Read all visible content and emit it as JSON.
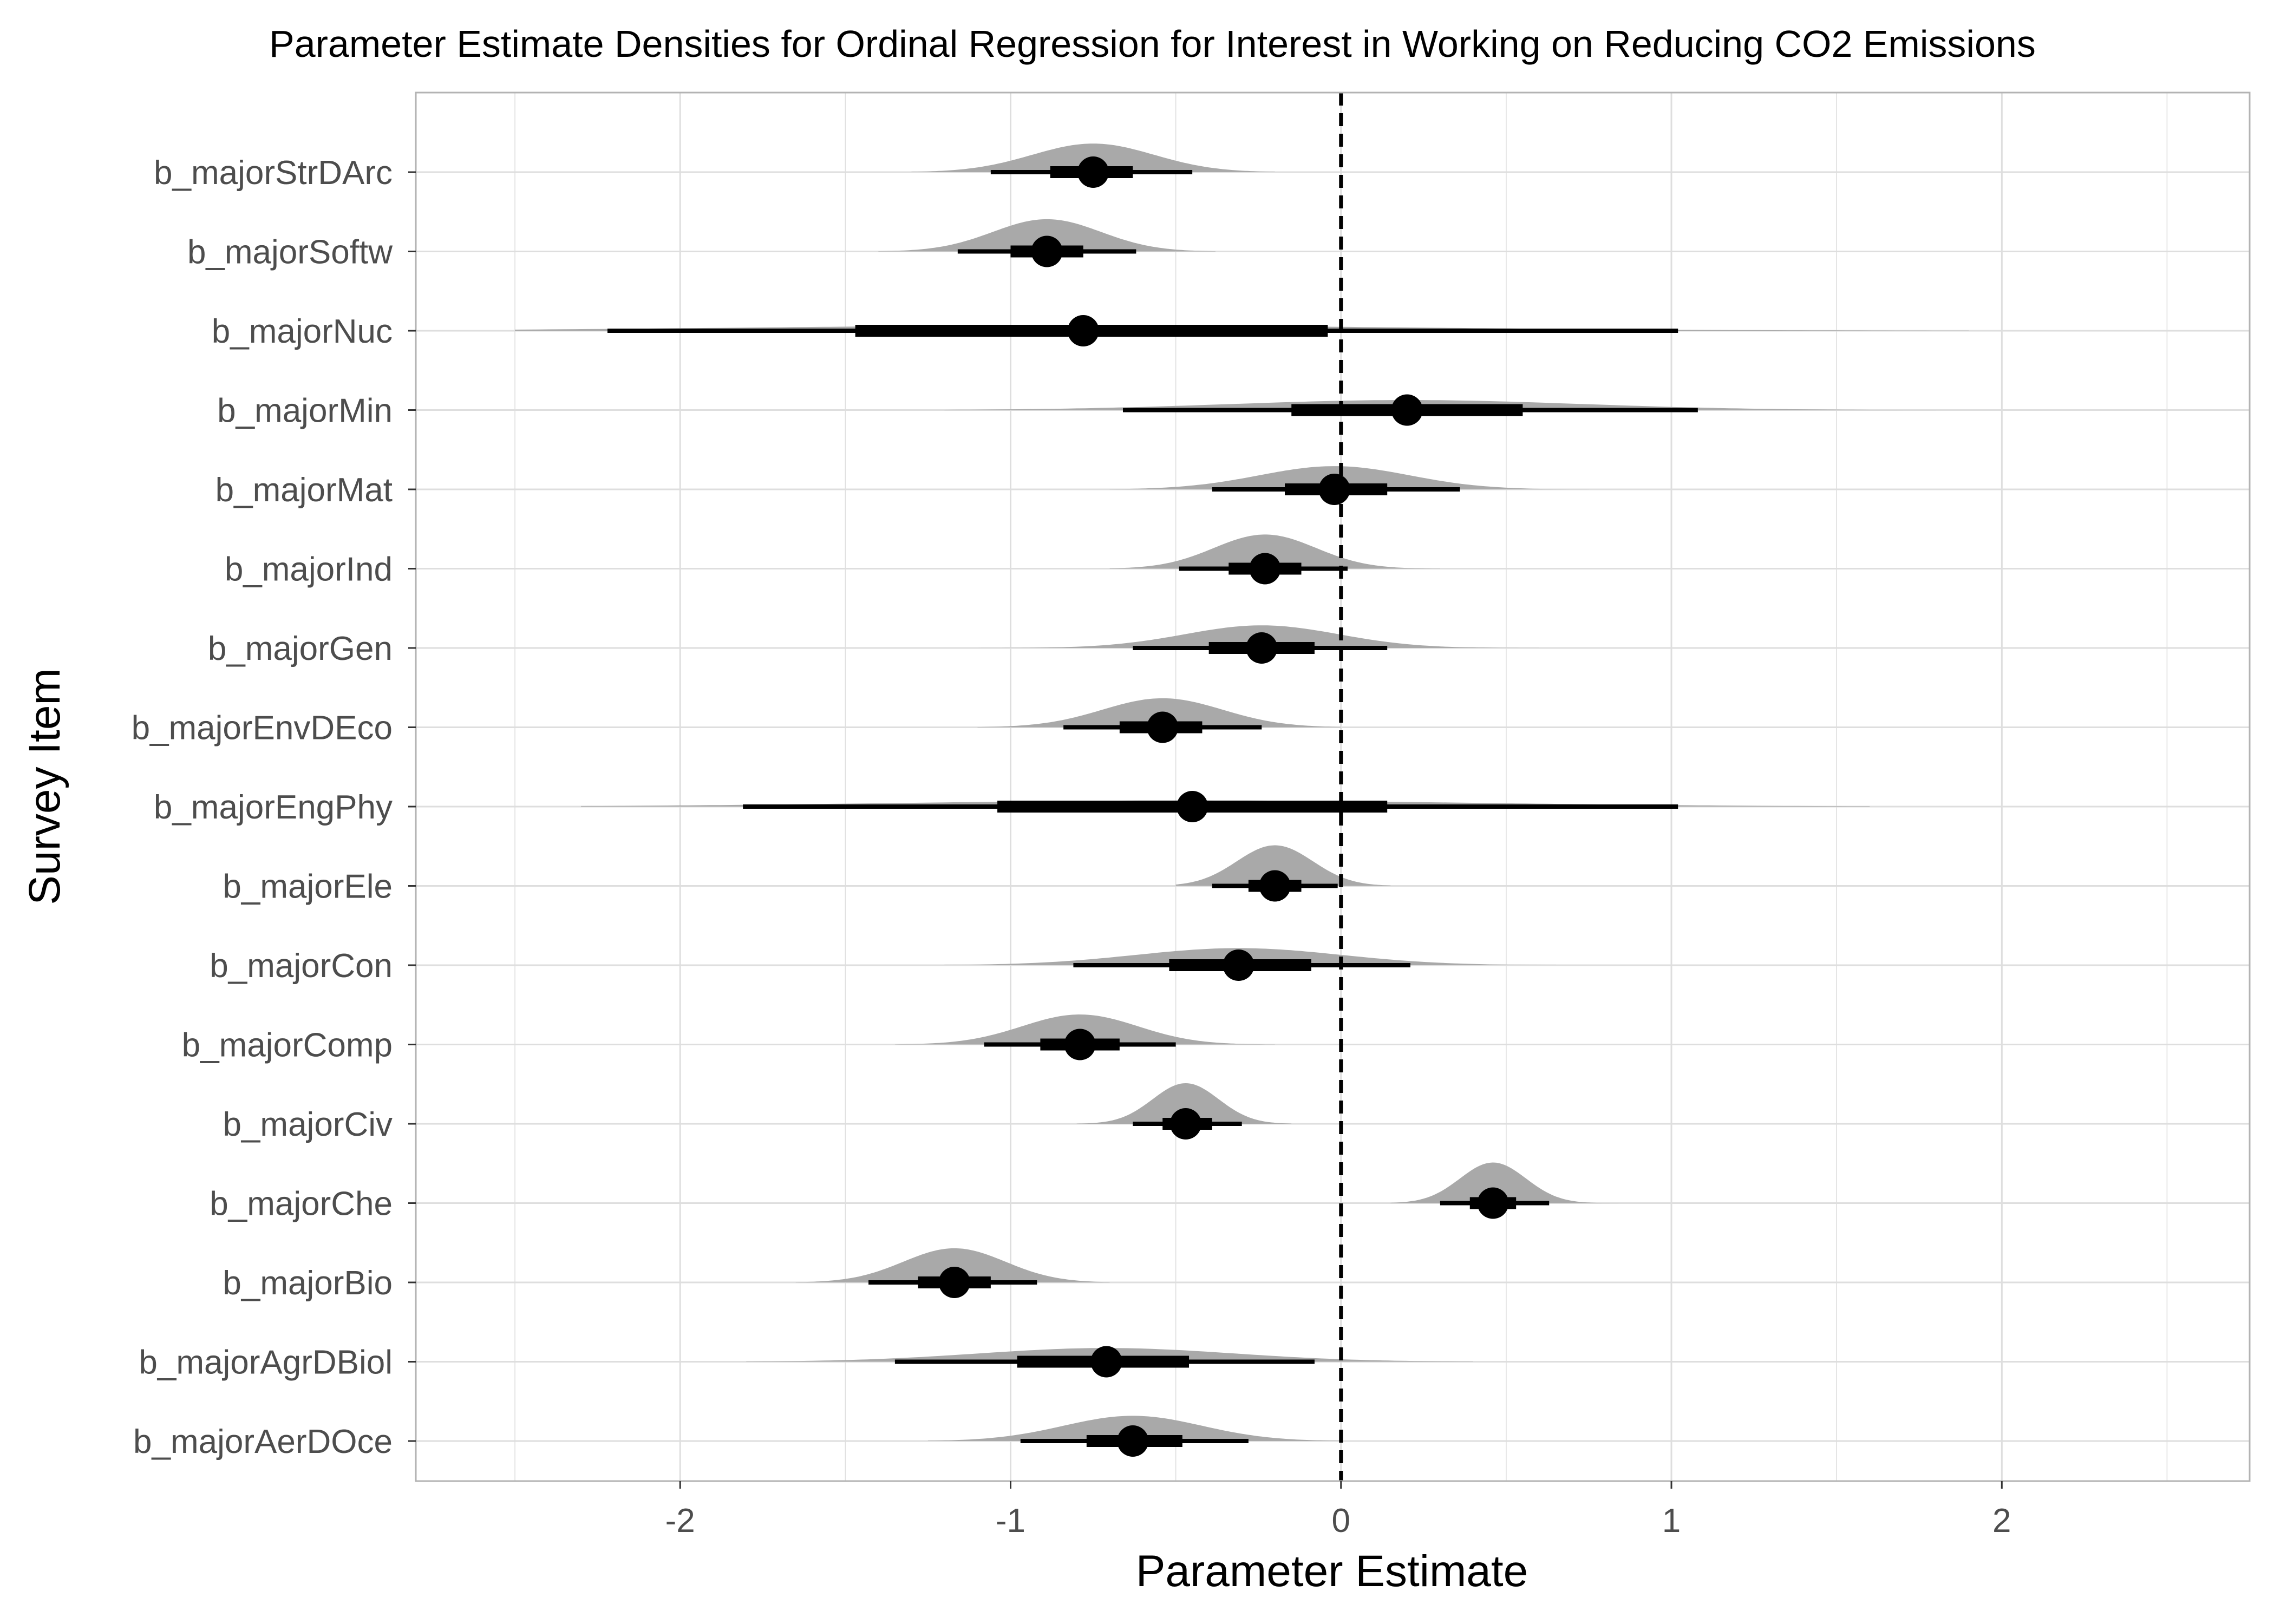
{
  "chart_data": {
    "type": "density-interval",
    "title": "Parameter Estimate Densities for Ordinal Regression for Interest in Working on Reducing CO2 Emissions",
    "xlabel": "Parameter Estimate",
    "ylabel": "Survey Item",
    "xlim": [
      -2.8,
      2.75
    ],
    "x_ticks": [
      "-2",
      "-1",
      "0",
      "1",
      "2"
    ],
    "x_tick_values": [
      -2,
      -1,
      0,
      1,
      2
    ],
    "reference_line": {
      "x": 0,
      "style": "dashed"
    },
    "grid": true,
    "colors": {
      "density": "#a9a9a9",
      "interval": "#000000",
      "grid": "#dedede",
      "panel_border": "#b3b3b3"
    },
    "categories": [
      "b_majorStrDArc",
      "b_majorSoftw",
      "b_majorNuc",
      "b_majorMin",
      "b_majorMat",
      "b_majorInd",
      "b_majorGen",
      "b_majorEnvDEco",
      "b_majorEngPhy",
      "b_majorEle",
      "b_majorCon",
      "b_majorComp",
      "b_majorCiv",
      "b_majorChe",
      "b_majorBio",
      "b_majorAgrDBiol",
      "b_majorAerDOce"
    ],
    "series": [
      {
        "label": "b_majorStrDArc",
        "median": -0.75,
        "inner": [
          -0.88,
          -0.63
        ],
        "outer": [
          -1.06,
          -0.45
        ],
        "range": [
          -1.3,
          -0.2
        ]
      },
      {
        "label": "b_majorSoftw",
        "median": -0.89,
        "inner": [
          -1.0,
          -0.78
        ],
        "outer": [
          -1.16,
          -0.62
        ],
        "range": [
          -1.4,
          -0.38
        ]
      },
      {
        "label": "b_majorNuc",
        "median": -0.78,
        "inner": [
          -1.47,
          -0.04
        ],
        "outer": [
          -2.22,
          1.02
        ],
        "range": [
          -2.5,
          1.9
        ]
      },
      {
        "label": "b_majorMin",
        "median": 0.2,
        "inner": [
          -0.15,
          0.55
        ],
        "outer": [
          -0.66,
          1.08
        ],
        "range": [
          -1.2,
          1.8
        ]
      },
      {
        "label": "b_majorMat",
        "median": -0.02,
        "inner": [
          -0.17,
          0.14
        ],
        "outer": [
          -0.39,
          0.36
        ],
        "range": [
          -0.7,
          0.75
        ]
      },
      {
        "label": "b_majorInd",
        "median": -0.23,
        "inner": [
          -0.34,
          -0.12
        ],
        "outer": [
          -0.49,
          0.02
        ],
        "range": [
          -0.7,
          0.3
        ]
      },
      {
        "label": "b_majorGen",
        "median": -0.24,
        "inner": [
          -0.4,
          -0.08
        ],
        "outer": [
          -0.63,
          0.14
        ],
        "range": [
          -1.1,
          0.6
        ]
      },
      {
        "label": "b_majorEnvDEco",
        "median": -0.54,
        "inner": [
          -0.67,
          -0.42
        ],
        "outer": [
          -0.84,
          -0.24
        ],
        "range": [
          -1.1,
          0.0
        ]
      },
      {
        "label": "b_majorEngPhy",
        "median": -0.45,
        "inner": [
          -1.04,
          0.14
        ],
        "outer": [
          -1.81,
          1.02
        ],
        "range": [
          -2.3,
          1.6
        ]
      },
      {
        "label": "b_majorEle",
        "median": -0.2,
        "inner": [
          -0.28,
          -0.12
        ],
        "outer": [
          -0.39,
          -0.01
        ],
        "range": [
          -0.5,
          0.15
        ]
      },
      {
        "label": "b_majorCon",
        "median": -0.31,
        "inner": [
          -0.52,
          -0.09
        ],
        "outer": [
          -0.81,
          0.21
        ],
        "range": [
          -1.2,
          0.65
        ]
      },
      {
        "label": "b_majorComp",
        "median": -0.79,
        "inner": [
          -0.91,
          -0.67
        ],
        "outer": [
          -1.08,
          -0.5
        ],
        "range": [
          -1.35,
          -0.2
        ]
      },
      {
        "label": "b_majorCiv",
        "median": -0.47,
        "inner": [
          -0.54,
          -0.39
        ],
        "outer": [
          -0.63,
          -0.3
        ],
        "range": [
          -0.8,
          -0.15
        ]
      },
      {
        "label": "b_majorChe",
        "median": 0.46,
        "inner": [
          0.39,
          0.53
        ],
        "outer": [
          0.3,
          0.63
        ],
        "range": [
          0.15,
          0.85
        ]
      },
      {
        "label": "b_majorBio",
        "median": -1.17,
        "inner": [
          -1.28,
          -1.06
        ],
        "outer": [
          -1.43,
          -0.92
        ],
        "range": [
          -1.65,
          -0.7
        ]
      },
      {
        "label": "b_majorAgrDBiol",
        "median": -0.71,
        "inner": [
          -0.98,
          -0.46
        ],
        "outer": [
          -1.35,
          -0.08
        ],
        "range": [
          -1.8,
          0.4
        ]
      },
      {
        "label": "b_majorAerDOce",
        "median": -0.63,
        "inner": [
          -0.77,
          -0.48
        ],
        "outer": [
          -0.97,
          -0.28
        ],
        "range": [
          -1.25,
          0.0
        ]
      }
    ]
  }
}
